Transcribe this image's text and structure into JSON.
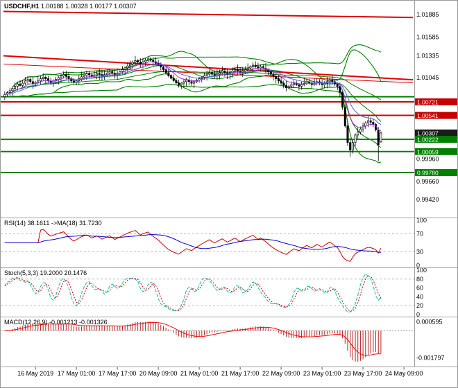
{
  "header": {
    "symbol": "USDCHF,H1",
    "ohlc": "1.00188 1.00328 1.00177 1.00307"
  },
  "chart_data": {
    "type": "candlestick",
    "symbol": "USDCHF",
    "timeframe": "H1",
    "slots": 160,
    "x_labels": [
      "16 May 2019",
      "17 May 01:00",
      "17 May 17:00",
      "20 May 09:00",
      "21 May 01:00",
      "21 May 17:00",
      "22 May 09:00",
      "23 May 01:00",
      "23 May 17:00",
      "24 May 09:00"
    ],
    "x_label_slots": [
      12,
      28,
      44,
      60,
      76,
      92,
      108,
      124,
      140,
      156
    ],
    "y_axis": {
      "top": 1.0193,
      "bottom": 0.9919,
      "ticks": [
        "1.01885",
        "1.01585",
        "1.01335",
        "1.01045",
        "0.99960",
        "0.99660",
        "0.99420"
      ]
    },
    "closes": [
      1.0082,
      1.00845,
      1.0087,
      1.009,
      1.0093,
      1.0096,
      1.0094,
      1.0097,
      1.01,
      1.0102,
      1.0099,
      1.0096,
      1.0098,
      1.01,
      1.0103,
      1.0105,
      1.0103,
      1.01,
      1.0098,
      1.01,
      1.0102,
      1.01045,
      1.01065,
      1.01085,
      1.0106,
      1.0103,
      1.01,
      1.0098,
      1.01,
      1.0103,
      1.01055,
      1.01075,
      1.01095,
      1.0108,
      1.0106,
      1.0108,
      1.011,
      1.01085,
      1.01065,
      1.01085,
      1.01105,
      1.01125,
      1.01105,
      1.01085,
      1.01105,
      1.01125,
      1.0115,
      1.01175,
      1.012,
      1.01225,
      1.0125,
      1.0127,
      1.0125,
      1.0123,
      1.01255,
      1.01275,
      1.01295,
      1.01275,
      1.01255,
      1.01235,
      1.01215,
      1.01185,
      1.0115,
      1.0111,
      1.0107,
      1.01035,
      1.01005,
      1.00975,
      1.0095,
      1.0097,
      1.0099,
      1.0101,
      1.0099,
      1.0097,
      1.0099,
      1.0101,
      1.0103,
      1.0105,
      1.0107,
      1.0109,
      1.0111,
      1.0109,
      1.0107,
      1.0109,
      1.0111,
      1.0113,
      1.0111,
      1.0109,
      1.0111,
      1.0113,
      1.0115,
      1.0113,
      1.0111,
      1.0113,
      1.0115,
      1.0117,
      1.0119,
      1.0121,
      1.0119,
      1.0117,
      1.0119,
      1.0117,
      1.0115,
      1.0112,
      1.0109,
      1.0106,
      1.0103,
      1.01,
      1.0097,
      1.0094,
      1.0091,
      1.0093,
      1.0095,
      1.0097,
      1.0095,
      1.0093,
      1.0095,
      1.0097,
      1.0099,
      1.0097,
      1.0095,
      1.0097,
      1.0099,
      1.0097,
      1.0095,
      1.0097,
      1.0099,
      1.0101,
      1.0099,
      1.0096,
      1.0093,
      1.0085,
      1.0065,
      1.004,
      1.0018,
      1.0008,
      1.0018,
      1.0028,
      1.0032,
      1.0036,
      1.004,
      1.0044,
      1.0047,
      1.0045,
      1.0042,
      1.0035,
      1.0015,
      1.00307
    ],
    "wick_lows": {
      "135": 0.9999,
      "146": 0.9993
    },
    "last_candle": {
      "open": 1.00188,
      "high": 1.00328,
      "low": 1.00177,
      "close": 1.00307
    },
    "horizontal_lines": [
      {
        "price": 1.0079,
        "color": "#008000",
        "width": 2
      },
      {
        "price": 1.00721,
        "color": "#d40000",
        "width": 2
      },
      {
        "price": 1.00541,
        "color": "#d40000",
        "width": 2
      },
      {
        "price": 1.00222,
        "color": "#008000",
        "width": 2
      },
      {
        "price": 1.00059,
        "color": "#008000",
        "width": 2
      },
      {
        "price": 0.9978,
        "color": "#008000",
        "width": 2
      }
    ],
    "trend_lines": [
      {
        "slot1": 0,
        "price1": 1.01925,
        "slot2": 160,
        "price2": 1.01845,
        "color": "#e00000",
        "width": 2
      },
      {
        "slot1": 0,
        "price1": 1.01335,
        "slot2": 160,
        "price2": 1.01015,
        "color": "#e00000",
        "width": 2
      },
      {
        "slot1": 0,
        "price1": 1.01225,
        "slot2": 160,
        "price2": 1.00975,
        "color": "#e00000",
        "width": 1
      }
    ],
    "price_badges": [
      {
        "label": "1.00721",
        "price": 1.00721,
        "color": "#c80000"
      },
      {
        "label": "1.00541",
        "price": 1.00541,
        "color": "#c80000"
      },
      {
        "label": "1.00307",
        "price": 1.00307,
        "color": "#1a1a1a"
      },
      {
        "label": "1.00222",
        "price": 1.00222,
        "color": "#008000"
      },
      {
        "label": "1.00059",
        "price": 1.00059,
        "color": "#008000"
      },
      {
        "label": "0.99780",
        "price": 0.9978,
        "color": "#008000"
      }
    ],
    "indicators": {
      "bollinger": [
        {
          "period": 20,
          "deviation": 2
        },
        {
          "period": 45,
          "deviation": 2
        }
      ],
      "moving_averages": [
        {
          "period": 8,
          "color": "#9932CC"
        },
        {
          "period": 16,
          "color": "#4169E1"
        }
      ],
      "rsi": {
        "label": "RSI(14) 38.1611  ->MA(18) 31.7230",
        "period": 14,
        "ma_period": 18,
        "value": 38.1611,
        "ma_value": 31.723,
        "levels": [
          70,
          30
        ],
        "ticks": [
          100,
          70,
          30,
          0
        ],
        "color": "#cc0000",
        "ma_color": "#0000CD"
      },
      "stochastic": {
        "label": "Stoch(5,3,3) 19.2000 20.1476",
        "k": 5,
        "d": 3,
        "slowing": 3,
        "value": 19.2,
        "signal_value": 20.1476,
        "levels": [
          80,
          20
        ],
        "ticks": [
          100,
          80,
          60,
          40,
          20,
          0
        ],
        "color": "#20B2AA",
        "signal_color": "#cc0000"
      },
      "macd": {
        "label": "MACD(12,26,9) -0.001213 -0.001326",
        "fast": 12,
        "slow": 26,
        "signal": 9,
        "value": -0.001213,
        "signal_value": -0.001326,
        "ticks": [
          "0.000595",
          "-0.001797"
        ],
        "histogram_color": "#B22222",
        "signal_color": "#ff0000"
      }
    }
  }
}
